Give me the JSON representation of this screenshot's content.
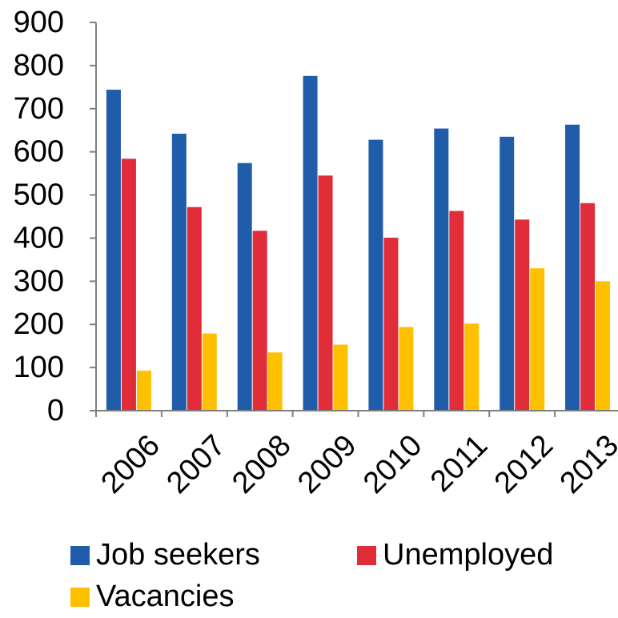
{
  "chart_data": {
    "type": "bar",
    "title": "",
    "xlabel": "",
    "ylabel": "",
    "categories": [
      "2006",
      "2007",
      "2008",
      "2009",
      "2010",
      "2011",
      "2012",
      "2013"
    ],
    "ylim": [
      0,
      900
    ],
    "yticks": [
      "0",
      "100",
      "200",
      "300",
      "400",
      "500",
      "600",
      "700",
      "800",
      "900"
    ],
    "grid": false,
    "legend_position": "bottom",
    "series": [
      {
        "name": "Job seekers",
        "color": "#1F5CAA",
        "values": [
          744,
          642,
          574,
          776,
          628,
          654,
          635,
          663
        ]
      },
      {
        "name": "Unemployed",
        "color": "#E12C3A",
        "values": [
          584,
          472,
          417,
          545,
          401,
          463,
          443,
          481
        ]
      },
      {
        "name": "Vacancies",
        "color": "#FFC000",
        "values": [
          93,
          179,
          135,
          153,
          194,
          202,
          330,
          300
        ]
      }
    ]
  }
}
